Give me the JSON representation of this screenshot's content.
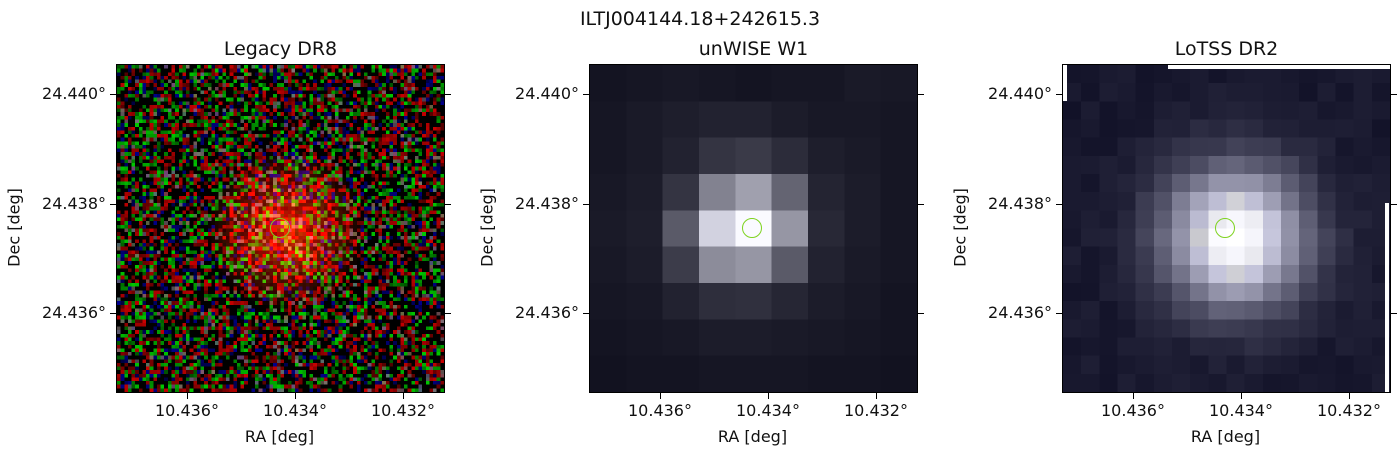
{
  "figure": {
    "title": "ILTJ004144.18+242615.3"
  },
  "panels": [
    {
      "title": "Legacy DR8",
      "xlabel": "RA [deg]",
      "ylabel": "Dec [deg]",
      "yticks": [
        "24.440°",
        "24.438°",
        "24.436°"
      ],
      "xticks": [
        "10.436°",
        "10.434°",
        "10.432°"
      ],
      "style": "rgb-noise"
    },
    {
      "title": "unWISE W1",
      "xlabel": "RA [deg]",
      "ylabel": "Dec [deg]",
      "yticks": [
        "24.440°",
        "24.438°",
        "24.436°"
      ],
      "xticks": [
        "10.436°",
        "10.434°",
        "10.432°"
      ],
      "style": "blocky-gray"
    },
    {
      "title": "LoTSS DR2",
      "xlabel": "RA [deg]",
      "ylabel": "Dec [deg]",
      "yticks": [
        "24.440°",
        "24.438°",
        "24.436°"
      ],
      "xticks": [
        "10.436°",
        "10.434°",
        "10.432°"
      ],
      "style": "smooth-gray"
    }
  ],
  "marker": {
    "color": "#7ed320"
  }
}
